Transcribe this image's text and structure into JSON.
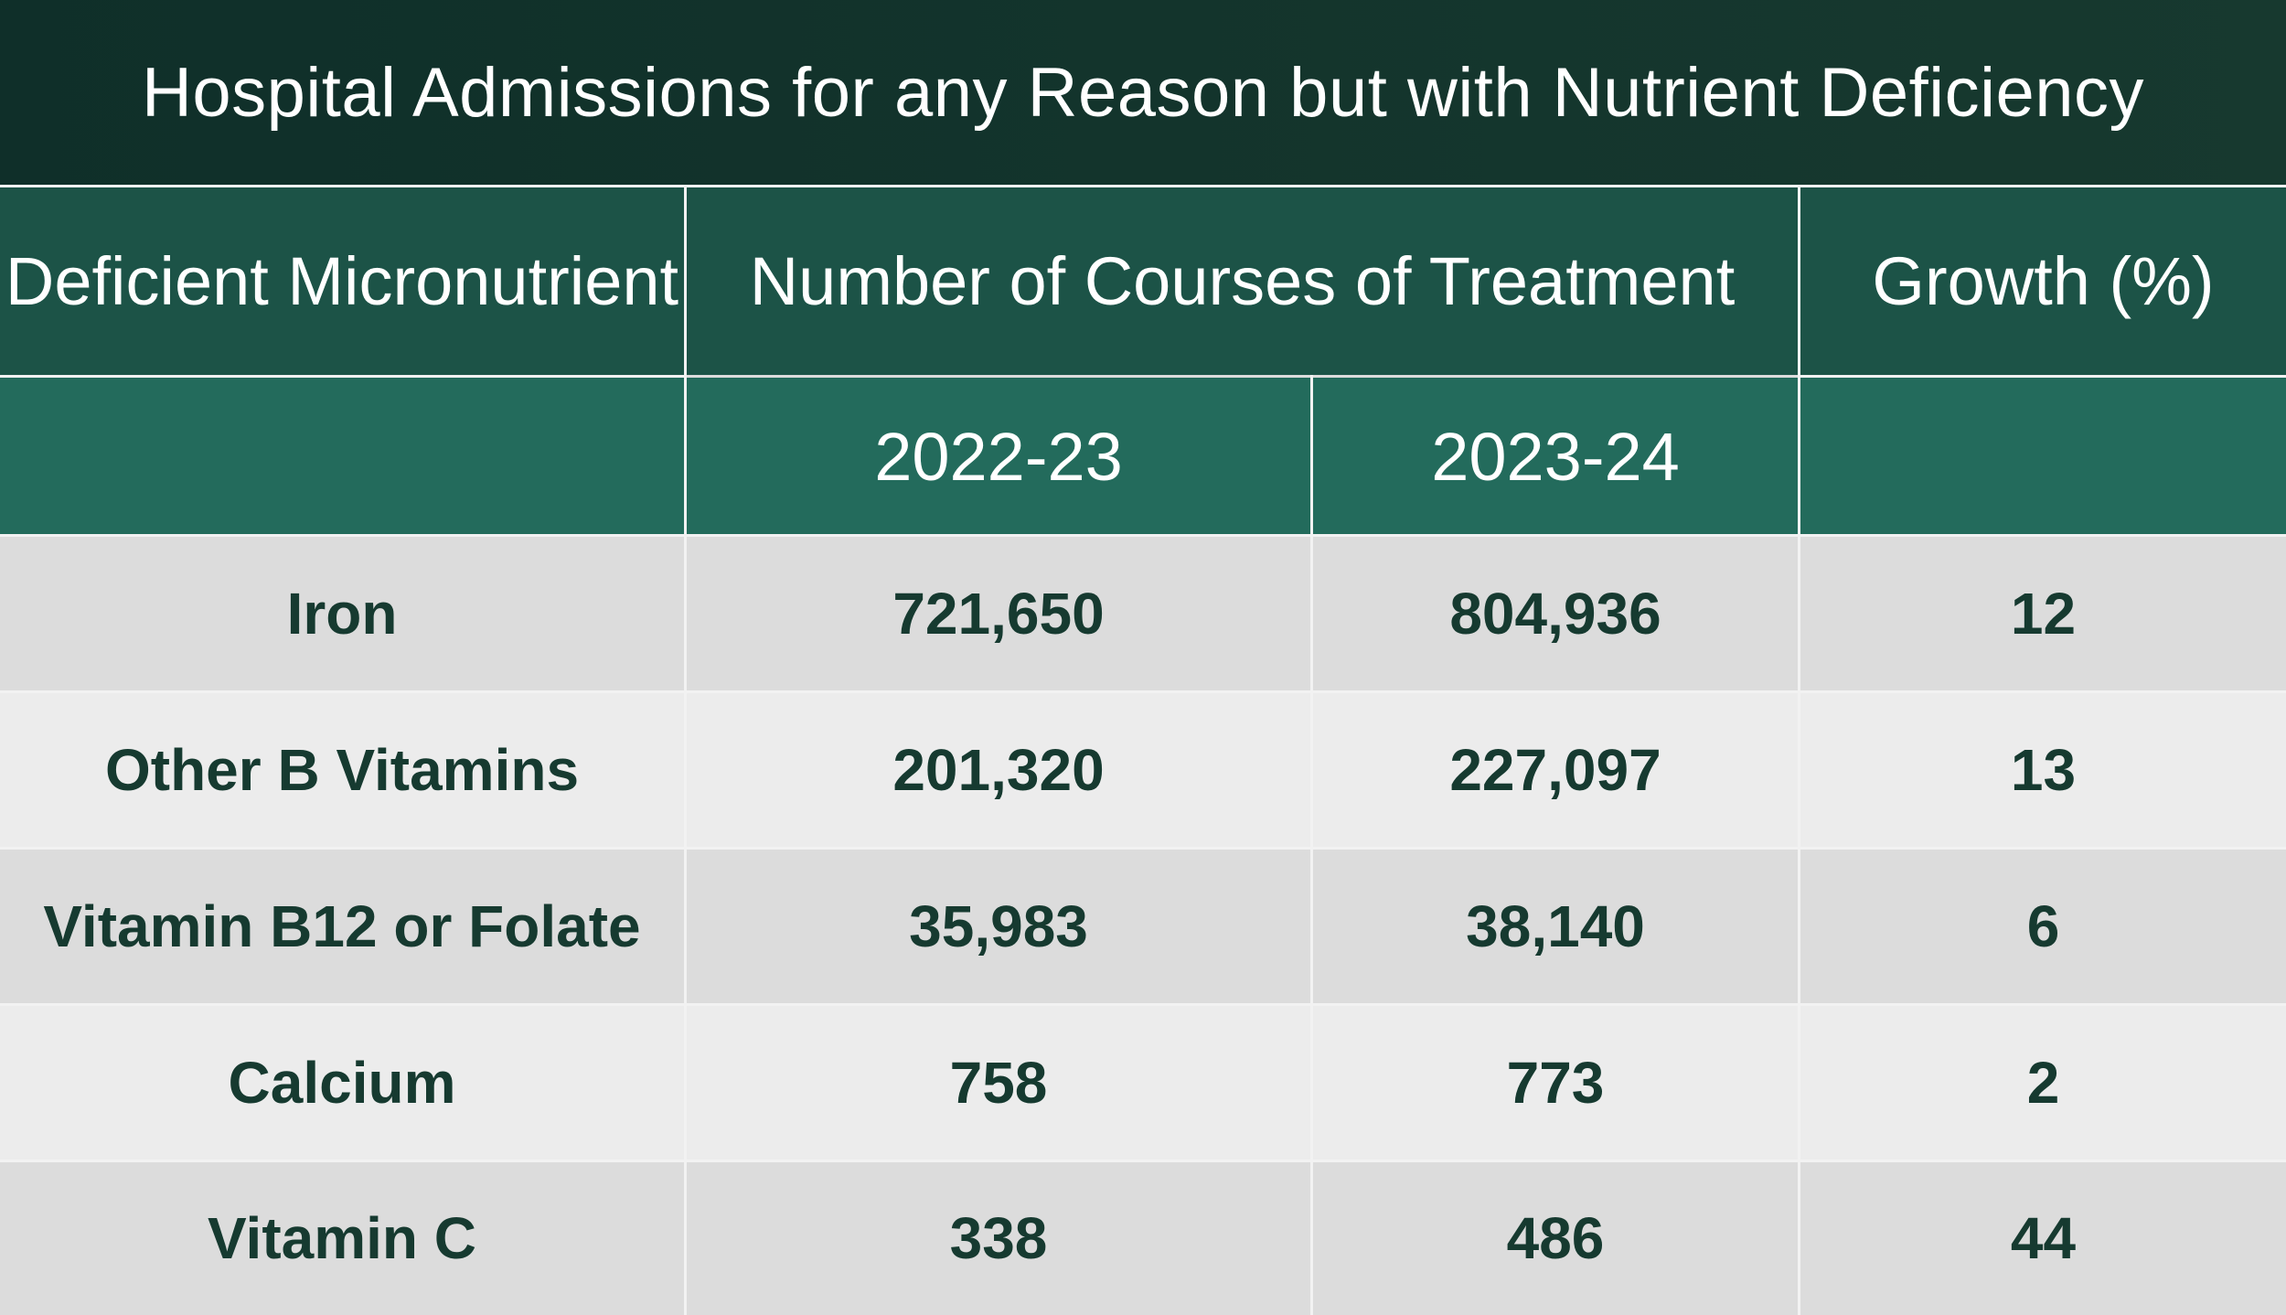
{
  "chart_data": {
    "type": "table",
    "title": "Hospital Admissions for any Reason but with Nutrient Deficiency",
    "columns": {
      "micronutrient": "Deficient Micronutrient",
      "courses": "Number of Courses of Treatment",
      "growth": "Growth (%)",
      "year1": "2022-23",
      "year2": "2023-24"
    },
    "rows": [
      {
        "name": "Iron",
        "y2022": "721,650",
        "y2023": "804,936",
        "growth": "12"
      },
      {
        "name": "Other B Vitamins",
        "y2022": "201,320",
        "y2023": "227,097",
        "growth": "13"
      },
      {
        "name": "Vitamin B12 or Folate",
        "y2022": "35,983",
        "y2023": "38,140",
        "growth": "6"
      },
      {
        "name": "Calcium",
        "y2022": "758",
        "y2023": "773",
        "growth": "2"
      },
      {
        "name": "Vitamin C",
        "y2022": "338",
        "y2023": "486",
        "growth": "44"
      }
    ]
  },
  "colors": {
    "title_bg": "#12342d",
    "header_bg": "#1c5347",
    "subheader_bg": "#236b5c",
    "row_odd": "#dcdcdc",
    "row_even": "#ececec",
    "body_text": "#163a30",
    "divider": "#f2f2f2"
  }
}
